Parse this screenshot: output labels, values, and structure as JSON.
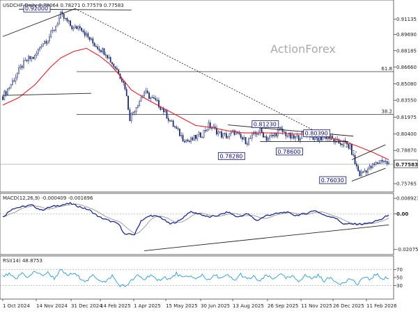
{
  "chart_data": {
    "type": "candlestick",
    "symbol_line": "USDCHF,Daily 0.78064 0.78271 0.77579 0.77583",
    "watermark": "ActionForex",
    "x_ticks": [
      "1 Oct 2024",
      "14 Nov 2024",
      "31 Dec 2024",
      "14 Feb 2025",
      "1 Apr 2025",
      "15 May 2025",
      "30 Jun 2025",
      "13 Aug 2025",
      "26 Sep 2025",
      "11 Nov 2025",
      "26 Dec 2025",
      "11 Feb 2026"
    ],
    "y_ticks": [
      0.91135,
      0.8969,
      0.88185,
      0.8666,
      0.8508,
      0.8355,
      0.81975,
      0.804,
      0.7887,
      0.77583,
      0.75765
    ],
    "y_tick_labels": [
      "0.91135",
      "0.89690",
      "0.88185",
      "0.86660",
      "0.85080",
      "0.83550",
      "0.81975",
      "0.80400",
      "0.78870",
      "0.77583",
      "0.75765"
    ],
    "current_price": "0.77583",
    "ylim": [
      0.7525,
      0.9265
    ],
    "fib_levels": [
      {
        "label": "61.8",
        "value": 0.8622
      },
      {
        "label": "38.2",
        "value": 0.8223
      }
    ],
    "annotations": [
      "0.92000",
      "0.81230",
      "0.80390",
      "0.78600",
      "0.78280",
      "0.76030"
    ],
    "close_path": [
      [
        0,
        0.839
      ],
      [
        4,
        0.848
      ],
      [
        8,
        0.858
      ],
      [
        12,
        0.868
      ],
      [
        16,
        0.874
      ],
      [
        20,
        0.876
      ],
      [
        24,
        0.888
      ],
      [
        28,
        0.893
      ],
      [
        32,
        0.902
      ],
      [
        36,
        0.915
      ],
      [
        40,
        0.909
      ],
      [
        44,
        0.902
      ],
      [
        48,
        0.905
      ],
      [
        52,
        0.896
      ],
      [
        56,
        0.889
      ],
      [
        60,
        0.884
      ],
      [
        64,
        0.88
      ],
      [
        68,
        0.87
      ],
      [
        72,
        0.862
      ],
      [
        76,
        0.848
      ],
      [
        79,
        0.819
      ],
      [
        84,
        0.833
      ],
      [
        88,
        0.843
      ],
      [
        92,
        0.838
      ],
      [
        96,
        0.833
      ],
      [
        100,
        0.826
      ],
      [
        104,
        0.816
      ],
      [
        108,
        0.808
      ],
      [
        112,
        0.8
      ],
      [
        116,
        0.797
      ],
      [
        120,
        0.801
      ],
      [
        124,
        0.804
      ],
      [
        128,
        0.812
      ],
      [
        132,
        0.808
      ],
      [
        136,
        0.803
      ],
      [
        140,
        0.802
      ],
      [
        144,
        0.806
      ],
      [
        148,
        0.8
      ],
      [
        152,
        0.797
      ],
      [
        156,
        0.803
      ],
      [
        160,
        0.807
      ],
      [
        164,
        0.8
      ],
      [
        168,
        0.802
      ],
      [
        172,
        0.808
      ],
      [
        176,
        0.804
      ],
      [
        180,
        0.8
      ],
      [
        184,
        0.801
      ],
      [
        188,
        0.806
      ],
      [
        192,
        0.802
      ],
      [
        196,
        0.799
      ],
      [
        200,
        0.802
      ],
      [
        204,
        0.8
      ],
      [
        208,
        0.796
      ],
      [
        212,
        0.796
      ],
      [
        216,
        0.792
      ],
      [
        219,
        0.777
      ],
      [
        222,
        0.766
      ],
      [
        225,
        0.77
      ],
      [
        228,
        0.772
      ],
      [
        232,
        0.776
      ],
      [
        236,
        0.78
      ],
      [
        240,
        0.7758
      ]
    ],
    "sma_path": [
      [
        0,
        0.831
      ],
      [
        10,
        0.838
      ],
      [
        20,
        0.85
      ],
      [
        30,
        0.867
      ],
      [
        36,
        0.875
      ],
      [
        44,
        0.881
      ],
      [
        52,
        0.884
      ],
      [
        60,
        0.877
      ],
      [
        66,
        0.87
      ],
      [
        72,
        0.86
      ],
      [
        80,
        0.845
      ],
      [
        90,
        0.836
      ],
      [
        100,
        0.828
      ],
      [
        110,
        0.82
      ],
      [
        120,
        0.812
      ],
      [
        130,
        0.81
      ],
      [
        140,
        0.807
      ],
      [
        150,
        0.805
      ],
      [
        160,
        0.805
      ],
      [
        170,
        0.805
      ],
      [
        180,
        0.804
      ],
      [
        190,
        0.804
      ],
      [
        200,
        0.802
      ],
      [
        210,
        0.798
      ],
      [
        220,
        0.793
      ],
      [
        230,
        0.787
      ],
      [
        240,
        0.78
      ]
    ],
    "trend_lines": [
      {
        "from": [
          0,
          0.895
        ],
        "to": [
          45,
          0.921
        ]
      },
      {
        "from": [
          45,
          0.921
        ],
        "to": [
          220,
          0.787
        ]
      },
      {
        "from": [
          0,
          0.84
        ],
        "to": [
          55,
          0.842
        ]
      },
      {
        "from": [
          10,
          0.9205
        ],
        "to": [
          80,
          0.9198
        ]
      },
      {
        "from": [
          160,
          0.797
        ],
        "to": [
          215,
          0.797
        ]
      },
      {
        "from": [
          140,
          0.8125
        ],
        "to": [
          218,
          0.802
        ]
      },
      {
        "from": [
          217,
          0.78
        ],
        "to": [
          238,
          0.794
        ]
      },
      {
        "from": [
          217,
          0.76
        ],
        "to": [
          238,
          0.772
        ]
      }
    ],
    "macd": {
      "label": "MACD(12,26,9) -0.000409 -0.001696",
      "y_ticks": [
        0.008923,
        0.0,
        -0.020759
      ],
      "y_tick_labels": [
        "0.008923",
        "0.00",
        "-0.020759"
      ],
      "ylim": [
        -0.0225,
        0.0106
      ],
      "macd_path": [
        [
          0,
          -0.002
        ],
        [
          6,
          0.003
        ],
        [
          12,
          0.004
        ],
        [
          18,
          0.005
        ],
        [
          24,
          0.002
        ],
        [
          30,
          0.004
        ],
        [
          36,
          0.005
        ],
        [
          42,
          0.006
        ],
        [
          48,
          0.004
        ],
        [
          54,
          0.002
        ],
        [
          60,
          -0.002
        ],
        [
          66,
          -0.004
        ],
        [
          72,
          -0.006
        ],
        [
          76,
          -0.012
        ],
        [
          82,
          -0.012
        ],
        [
          86,
          -0.004
        ],
        [
          92,
          -0.001
        ],
        [
          98,
          -0.002
        ],
        [
          104,
          -0.006
        ],
        [
          110,
          -0.004
        ],
        [
          116,
          0.001
        ],
        [
          122,
          0.0
        ],
        [
          128,
          -0.002
        ],
        [
          134,
          -0.001
        ],
        [
          140,
          0.001
        ],
        [
          146,
          -0.002
        ],
        [
          152,
          0.0
        ],
        [
          158,
          -0.004
        ],
        [
          164,
          -0.001
        ],
        [
          170,
          0.0
        ],
        [
          176,
          0.001
        ],
        [
          182,
          -0.001
        ],
        [
          188,
          0.0
        ],
        [
          194,
          0.002
        ],
        [
          200,
          -0.001
        ],
        [
          206,
          -0.002
        ],
        [
          212,
          -0.006
        ],
        [
          218,
          -0.006
        ],
        [
          224,
          -0.006
        ],
        [
          230,
          -0.005
        ],
        [
          236,
          -0.003
        ],
        [
          240,
          -0.0004
        ]
      ],
      "trend_line": {
        "from": [
          88,
          -0.0215
        ],
        "to": [
          240,
          -0.0065
        ]
      }
    },
    "rsi": {
      "label": "RSI(14) 48.8753",
      "y_ticks": [
        70,
        50,
        30
      ],
      "y_tick_labels": [
        "70",
        "50",
        "30"
      ],
      "ylim": [
        0,
        100
      ],
      "rsi_path": [
        [
          0,
          52
        ],
        [
          4,
          58
        ],
        [
          8,
          45
        ],
        [
          12,
          62
        ],
        [
          16,
          50
        ],
        [
          20,
          66
        ],
        [
          24,
          55
        ],
        [
          28,
          62
        ],
        [
          32,
          48
        ],
        [
          36,
          68
        ],
        [
          40,
          55
        ],
        [
          44,
          60
        ],
        [
          48,
          50
        ],
        [
          52,
          40
        ],
        [
          56,
          55
        ],
        [
          60,
          45
        ],
        [
          64,
          38
        ],
        [
          68,
          55
        ],
        [
          72,
          32
        ],
        [
          76,
          28
        ],
        [
          80,
          42
        ],
        [
          84,
          55
        ],
        [
          88,
          45
        ],
        [
          92,
          58
        ],
        [
          96,
          40
        ],
        [
          100,
          52
        ],
        [
          104,
          45
        ],
        [
          108,
          60
        ],
        [
          112,
          48
        ],
        [
          116,
          55
        ],
        [
          120,
          45
        ],
        [
          124,
          58
        ],
        [
          128,
          42
        ],
        [
          132,
          56
        ],
        [
          136,
          48
        ],
        [
          140,
          55
        ],
        [
          144,
          42
        ],
        [
          148,
          58
        ],
        [
          152,
          45
        ],
        [
          156,
          52
        ],
        [
          160,
          40
        ],
        [
          164,
          56
        ],
        [
          168,
          45
        ],
        [
          172,
          60
        ],
        [
          176,
          48
        ],
        [
          180,
          52
        ],
        [
          184,
          42
        ],
        [
          188,
          55
        ],
        [
          192,
          48
        ],
        [
          196,
          55
        ],
        [
          200,
          42
        ],
        [
          204,
          50
        ],
        [
          208,
          38
        ],
        [
          212,
          35
        ],
        [
          216,
          48
        ],
        [
          220,
          32
        ],
        [
          224,
          50
        ],
        [
          228,
          45
        ],
        [
          232,
          58
        ],
        [
          236,
          48
        ],
        [
          240,
          48.9
        ]
      ]
    }
  }
}
